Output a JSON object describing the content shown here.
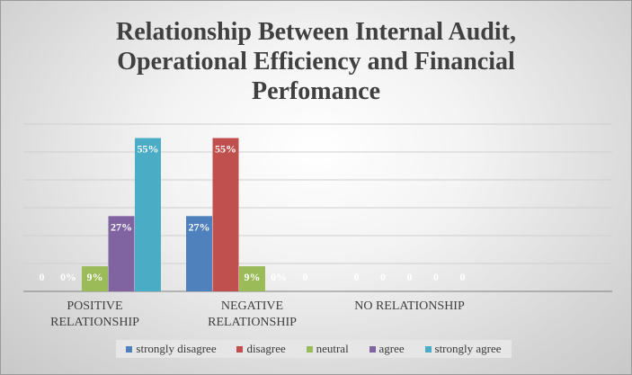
{
  "chart_data": {
    "type": "bar",
    "title_lines": [
      "Relationship Between Internal Audit,",
      "Operational Efficiency and Financial",
      "Perfomance"
    ],
    "categories": [
      [
        "POSITIVE",
        "RELATIONSHIP"
      ],
      [
        "NEGATIVE",
        "RELATIONSHIP"
      ],
      [
        "NO RELATIONSHIP"
      ]
    ],
    "series": [
      {
        "name": "strongly disagree",
        "color": "#4f81bd",
        "values": [
          0,
          27,
          0
        ],
        "labels": [
          "0",
          "27%",
          "0"
        ]
      },
      {
        "name": "disagree",
        "color": "#c0504d",
        "values": [
          0,
          55,
          0
        ],
        "labels": [
          "0%",
          "55%",
          "0"
        ]
      },
      {
        "name": "neutral",
        "color": "#9bbb59",
        "values": [
          9,
          9,
          0
        ],
        "labels": [
          "9%",
          "9%",
          "0"
        ]
      },
      {
        "name": "agree",
        "color": "#8064a2",
        "values": [
          27,
          0,
          0
        ],
        "labels": [
          "27%",
          "0%",
          "0"
        ]
      },
      {
        "name": "strongly agree",
        "color": "#4bacc6",
        "values": [
          55,
          0,
          0
        ],
        "labels": [
          "55%",
          "0",
          "0"
        ]
      }
    ],
    "ylim": [
      0,
      60
    ],
    "gridlines": true,
    "legend_position": "bottom"
  }
}
